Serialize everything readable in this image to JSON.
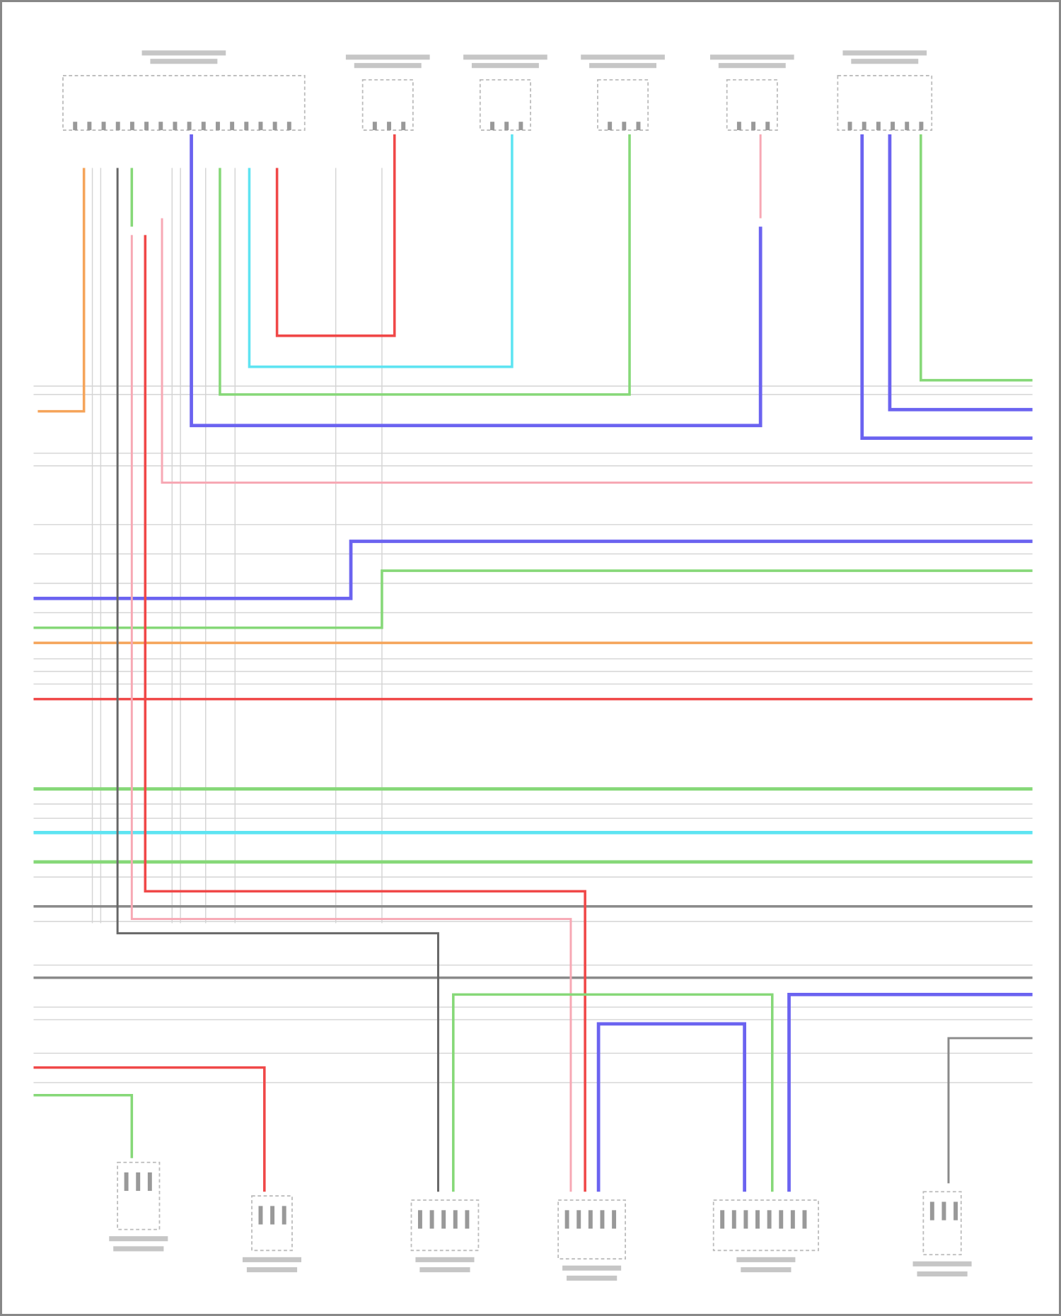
{
  "diagram": {
    "type": "wiring-diagram",
    "wire_colors": {
      "orange": "#f5a45a",
      "red": "#f04848",
      "pink": "#f7a8b4",
      "cyan": "#5ee4f2",
      "green": "#86d878",
      "blue": "#6b63f0",
      "gray": "#8a8a8a",
      "dark_gray": "#666666"
    }
  }
}
